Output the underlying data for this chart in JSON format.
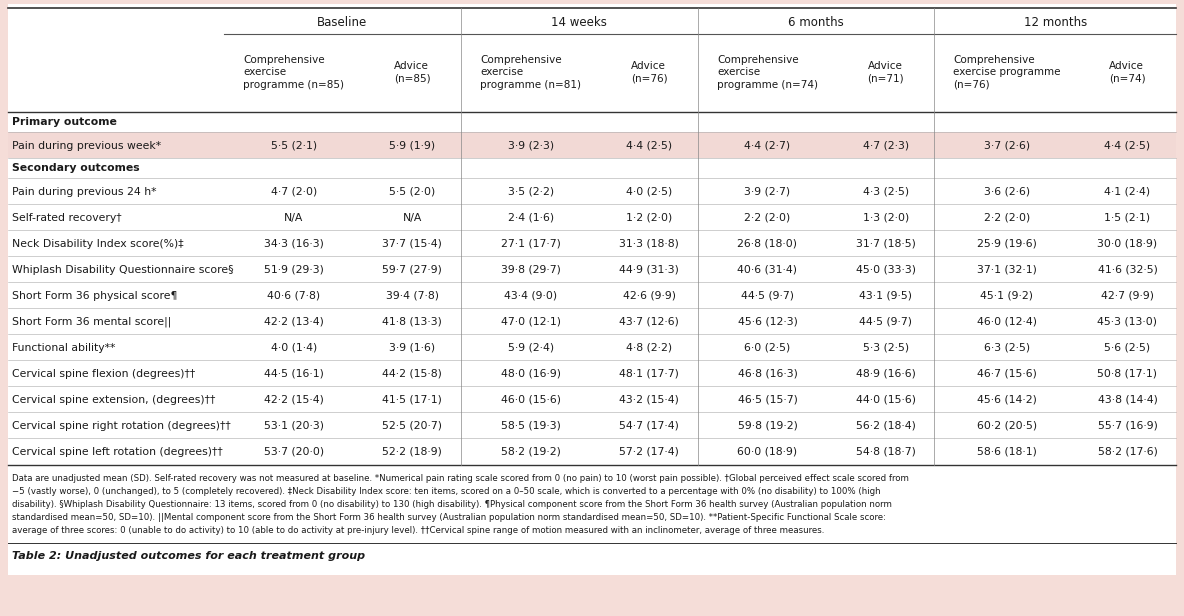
{
  "background_color": "#f5ddd8",
  "col_groups": [
    "Baseline",
    "14 weeks",
    "6 months",
    "12 months"
  ],
  "col_headers": [
    "Comprehensive\nexercise\nprogramme (n=85)",
    "Advice\n(n=85)",
    "Comprehensive\nexercise\nprogramme (n=81)",
    "Advice\n(n=76)",
    "Comprehensive\nexercise\nprogramme (n=74)",
    "Advice\n(n=71)",
    "Comprehensive\nexercise programme\n(n=76)",
    "Advice\n(n=74)"
  ],
  "rows": [
    {
      "label": "Primary outcome",
      "values": [],
      "bold": true,
      "highlight": false,
      "is_header": true
    },
    {
      "label": "Pain during previous week*",
      "values": [
        "5·5 (2·1)",
        "5·9 (1·9)",
        "3·9 (2·3)",
        "4·4 (2·5)",
        "4·4 (2·7)",
        "4·7 (2·3)",
        "3·7 (2·6)",
        "4·4 (2·5)"
      ],
      "bold": false,
      "highlight": true,
      "is_header": false
    },
    {
      "label": "Secondary outcomes",
      "values": [],
      "bold": true,
      "highlight": false,
      "is_header": true
    },
    {
      "label": "Pain during previous 24 h*",
      "values": [
        "4·7 (2·0)",
        "5·5 (2·0)",
        "3·5 (2·2)",
        "4·0 (2·5)",
        "3·9 (2·7)",
        "4·3 (2·5)",
        "3·6 (2·6)",
        "4·1 (2·4)"
      ],
      "bold": false,
      "highlight": false,
      "is_header": false
    },
    {
      "label": "Self-rated recovery†",
      "values": [
        "N/A",
        "N/A",
        "2·4 (1·6)",
        "1·2 (2·0)",
        "2·2 (2·0)",
        "1·3 (2·0)",
        "2·2 (2·0)",
        "1·5 (2·1)"
      ],
      "bold": false,
      "highlight": false,
      "is_header": false
    },
    {
      "label": "Neck Disability Index score(%)‡",
      "values": [
        "34·3 (16·3)",
        "37·7 (15·4)",
        "27·1 (17·7)",
        "31·3 (18·8)",
        "26·8 (18·0)",
        "31·7 (18·5)",
        "25·9 (19·6)",
        "30·0 (18·9)"
      ],
      "bold": false,
      "highlight": false,
      "is_header": false
    },
    {
      "label": "Whiplash Disability Questionnaire score§",
      "values": [
        "51·9 (29·3)",
        "59·7 (27·9)",
        "39·8 (29·7)",
        "44·9 (31·3)",
        "40·6 (31·4)",
        "45·0 (33·3)",
        "37·1 (32·1)",
        "41·6 (32·5)"
      ],
      "bold": false,
      "highlight": false,
      "is_header": false
    },
    {
      "label": "Short Form 36 physical score¶",
      "values": [
        "40·6 (7·8)",
        "39·4 (7·8)",
        "43·4 (9·0)",
        "42·6 (9·9)",
        "44·5 (9·7)",
        "43·1 (9·5)",
        "45·1 (9·2)",
        "42·7 (9·9)"
      ],
      "bold": false,
      "highlight": false,
      "is_header": false
    },
    {
      "label": "Short Form 36 mental score||",
      "values": [
        "42·2 (13·4)",
        "41·8 (13·3)",
        "47·0 (12·1)",
        "43·7 (12·6)",
        "45·6 (12·3)",
        "44·5 (9·7)",
        "46·0 (12·4)",
        "45·3 (13·0)"
      ],
      "bold": false,
      "highlight": false,
      "is_header": false
    },
    {
      "label": "Functional ability**",
      "values": [
        "4·0 (1·4)",
        "3·9 (1·6)",
        "5·9 (2·4)",
        "4·8 (2·2)",
        "6·0 (2·5)",
        "5·3 (2·5)",
        "6·3 (2·5)",
        "5·6 (2·5)"
      ],
      "bold": false,
      "highlight": false,
      "is_header": false
    },
    {
      "label": "Cervical spine flexion (degrees)††",
      "values": [
        "44·5 (16·1)",
        "44·2 (15·8)",
        "48·0 (16·9)",
        "48·1 (17·7)",
        "46·8 (16·3)",
        "48·9 (16·6)",
        "46·7 (15·6)",
        "50·8 (17·1)"
      ],
      "bold": false,
      "highlight": false,
      "is_header": false
    },
    {
      "label": "Cervical spine extension, (degrees)††",
      "values": [
        "42·2 (15·4)",
        "41·5 (17·1)",
        "46·0 (15·6)",
        "43·2 (15·4)",
        "46·5 (15·7)",
        "44·0 (15·6)",
        "45·6 (14·2)",
        "43·8 (14·4)"
      ],
      "bold": false,
      "highlight": false,
      "is_header": false
    },
    {
      "label": "Cervical spine right rotation (degrees)††",
      "values": [
        "53·1 (20·3)",
        "52·5 (20·7)",
        "58·5 (19·3)",
        "54·7 (17·4)",
        "59·8 (19·2)",
        "56·2 (18·4)",
        "60·2 (20·5)",
        "55·7 (16·9)"
      ],
      "bold": false,
      "highlight": false,
      "is_header": false
    },
    {
      "label": "Cervical spine left rotation (degrees)††",
      "values": [
        "53·7 (20·0)",
        "52·2 (18·9)",
        "58·2 (19·2)",
        "57·2 (17·4)",
        "60·0 (18·9)",
        "54·8 (18·7)",
        "58·6 (18·1)",
        "58·2 (17·6)"
      ],
      "bold": false,
      "highlight": false,
      "is_header": false
    }
  ],
  "footnote_lines": [
    "Data are unadjusted mean (SD). Self-rated recovery was not measured at baseline. *Numerical pain rating scale scored from 0 (no pain) to 10 (worst pain possible). †Global perceived effect scale scored from",
    "−5 (vastly worse), 0 (unchanged), to 5 (completely recovered). ‡Neck Disability Index score: ten items, scored on a 0–50 scale, which is converted to a percentage with 0% (no disability) to 100% (high",
    "disability). §Whiplash Disability Questionnaire: 13 items, scored from 0 (no disability) to 130 (high disability). ¶Physical component score from the Short Form 36 health survey (Australian population norm",
    "standardised mean=50, SD=10). ||Mental component score from the Short Form 36 health survey (Australian population norm standardised mean=50, SD=10). **Patient-Specific Functional Scale score:",
    "average of three scores: 0 (unable to do activity) to 10 (able to do activity at pre-injury level). ††Cervical spine range of motion measured with an inclinometer, average of three measures."
  ],
  "caption": "Table 2: Unadjusted outcomes for each treatment group",
  "text_color": "#1a1a1a",
  "line_color_heavy": "#333333",
  "line_color_light": "#aaaaaa",
  "highlight_color": "#f2d9d5"
}
